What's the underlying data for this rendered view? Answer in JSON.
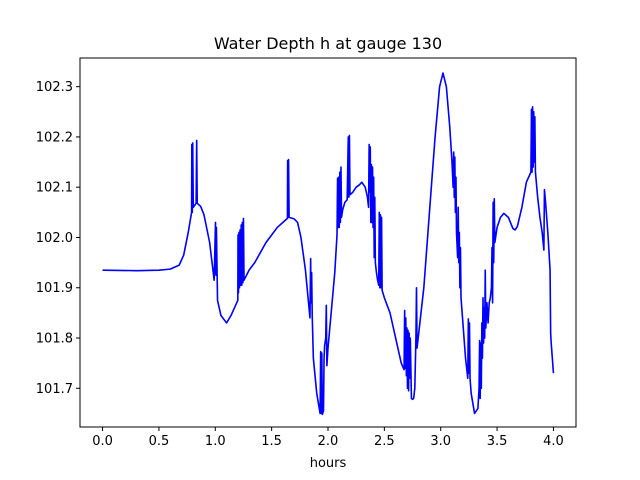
{
  "chart_data": {
    "type": "line",
    "title": "Water Depth h at gauge 130",
    "xlabel": "hours",
    "ylabel": "",
    "xlim": [
      -0.2,
      4.2
    ],
    "ylim": [
      101.623,
      102.357
    ],
    "xticks": [
      0.0,
      0.5,
      1.0,
      1.5,
      2.0,
      2.5,
      3.0,
      3.5,
      4.0
    ],
    "xtick_labels": [
      "0.0",
      "0.5",
      "1.0",
      "1.5",
      "2.0",
      "2.5",
      "3.0",
      "3.5",
      "4.0"
    ],
    "yticks": [
      101.7,
      101.8,
      101.9,
      102.0,
      102.1,
      102.2,
      102.3
    ],
    "ytick_labels": [
      "101.7",
      "101.8",
      "101.9",
      "102.0",
      "102.1",
      "102.2",
      "102.3"
    ],
    "grid": false,
    "series": [
      {
        "color": "#0000ff",
        "points": [
          [
            0.0,
            101.935
          ],
          [
            0.3,
            101.934
          ],
          [
            0.5,
            101.935
          ],
          [
            0.6,
            101.937
          ],
          [
            0.68,
            101.945
          ],
          [
            0.72,
            101.965
          ],
          [
            0.76,
            102.01
          ],
          [
            0.79,
            102.05
          ],
          [
            0.792,
            102.185
          ],
          [
            0.796,
            102.05
          ],
          [
            0.8,
            102.188
          ],
          [
            0.805,
            102.06
          ],
          [
            0.83,
            102.068
          ],
          [
            0.835,
            102.193
          ],
          [
            0.84,
            102.068
          ],
          [
            0.87,
            102.062
          ],
          [
            0.9,
            102.045
          ],
          [
            0.95,
            101.99
          ],
          [
            0.99,
            101.915
          ],
          [
            1.002,
            102.03
          ],
          [
            1.006,
            101.925
          ],
          [
            1.01,
            102.02
          ],
          [
            1.02,
            101.875
          ],
          [
            1.05,
            101.845
          ],
          [
            1.1,
            101.83
          ],
          [
            1.14,
            101.845
          ],
          [
            1.2,
            101.875
          ],
          [
            1.202,
            102.005
          ],
          [
            1.206,
            101.89
          ],
          [
            1.21,
            102.01
          ],
          [
            1.215,
            101.9
          ],
          [
            1.22,
            102.015
          ],
          [
            1.225,
            101.905
          ],
          [
            1.23,
            102.025
          ],
          [
            1.235,
            101.905
          ],
          [
            1.24,
            102.03
          ],
          [
            1.245,
            101.91
          ],
          [
            1.25,
            102.038
          ],
          [
            1.255,
            101.915
          ],
          [
            1.3,
            101.935
          ],
          [
            1.35,
            101.95
          ],
          [
            1.4,
            101.97
          ],
          [
            1.45,
            101.99
          ],
          [
            1.5,
            102.005
          ],
          [
            1.55,
            102.02
          ],
          [
            1.6,
            102.03
          ],
          [
            1.64,
            102.038
          ],
          [
            1.642,
            102.153
          ],
          [
            1.646,
            102.04
          ],
          [
            1.65,
            102.155
          ],
          [
            1.655,
            102.04
          ],
          [
            1.7,
            102.037
          ],
          [
            1.73,
            102.03
          ],
          [
            1.76,
            102.0
          ],
          [
            1.8,
            101.935
          ],
          [
            1.84,
            101.84
          ],
          [
            1.846,
            101.958
          ],
          [
            1.85,
            101.87
          ],
          [
            1.855,
            101.93
          ],
          [
            1.86,
            101.845
          ],
          [
            1.87,
            101.76
          ],
          [
            1.9,
            101.69
          ],
          [
            1.93,
            101.65
          ],
          [
            1.935,
            101.773
          ],
          [
            1.94,
            101.65
          ],
          [
            1.945,
            101.77
          ],
          [
            1.95,
            101.648
          ],
          [
            1.96,
            101.655
          ],
          [
            1.965,
            101.76
          ],
          [
            1.97,
            101.785
          ],
          [
            1.98,
            101.8
          ],
          [
            1.985,
            101.865
          ],
          [
            1.99,
            101.745
          ],
          [
            2.0,
            101.78
          ],
          [
            2.04,
            101.88
          ],
          [
            2.06,
            101.93
          ],
          [
            2.08,
            102.005
          ],
          [
            2.085,
            102.118
          ],
          [
            2.09,
            102.02
          ],
          [
            2.095,
            102.12
          ],
          [
            2.1,
            102.02
          ],
          [
            2.105,
            102.13
          ],
          [
            2.11,
            102.03
          ],
          [
            2.115,
            102.14
          ],
          [
            2.12,
            102.04
          ],
          [
            2.13,
            102.055
          ],
          [
            2.15,
            102.07
          ],
          [
            2.17,
            102.075
          ],
          [
            2.18,
            102.2
          ],
          [
            2.185,
            102.08
          ],
          [
            2.19,
            102.203
          ],
          [
            2.195,
            102.085
          ],
          [
            2.22,
            102.09
          ],
          [
            2.25,
            102.1
          ],
          [
            2.28,
            102.105
          ],
          [
            2.3,
            102.11
          ],
          [
            2.33,
            102.1
          ],
          [
            2.35,
            102.08
          ],
          [
            2.36,
            102.06
          ],
          [
            2.365,
            102.185
          ],
          [
            2.37,
            102.09
          ],
          [
            2.375,
            102.18
          ],
          [
            2.38,
            102.03
          ],
          [
            2.385,
            102.145
          ],
          [
            2.39,
            102.03
          ],
          [
            2.395,
            102.14
          ],
          [
            2.4,
            102.02
          ],
          [
            2.405,
            102.12
          ],
          [
            2.41,
            101.96
          ],
          [
            2.415,
            102.08
          ],
          [
            2.42,
            101.95
          ],
          [
            2.43,
            101.93
          ],
          [
            2.44,
            101.915
          ],
          [
            2.45,
            101.905
          ],
          [
            2.455,
            102.05
          ],
          [
            2.46,
            101.9
          ],
          [
            2.465,
            102.045
          ],
          [
            2.47,
            101.9
          ],
          [
            2.475,
            102.04
          ],
          [
            2.48,
            101.895
          ],
          [
            2.5,
            101.88
          ],
          [
            2.55,
            101.85
          ],
          [
            2.6,
            101.8
          ],
          [
            2.65,
            101.75
          ],
          [
            2.675,
            101.737
          ],
          [
            2.68,
            101.855
          ],
          [
            2.685,
            101.74
          ],
          [
            2.69,
            101.84
          ],
          [
            2.695,
            101.725
          ],
          [
            2.7,
            101.82
          ],
          [
            2.705,
            101.7
          ],
          [
            2.71,
            101.815
          ],
          [
            2.715,
            101.695
          ],
          [
            2.72,
            101.81
          ],
          [
            2.725,
            101.72
          ],
          [
            2.73,
            101.8
          ],
          [
            2.74,
            101.68
          ],
          [
            2.75,
            101.678
          ],
          [
            2.76,
            101.68
          ],
          [
            2.77,
            101.7
          ],
          [
            2.78,
            101.8
          ],
          [
            2.785,
            101.9
          ],
          [
            2.79,
            101.78
          ],
          [
            2.8,
            101.8
          ],
          [
            2.85,
            101.9
          ],
          [
            2.9,
            102.05
          ],
          [
            2.95,
            102.2
          ],
          [
            2.99,
            102.3
          ],
          [
            3.02,
            102.327
          ],
          [
            3.05,
            102.3
          ],
          [
            3.08,
            102.22
          ],
          [
            3.1,
            102.15
          ],
          [
            3.11,
            102.1
          ],
          [
            3.115,
            102.17
          ],
          [
            3.12,
            102.08
          ],
          [
            3.125,
            102.16
          ],
          [
            3.13,
            102.05
          ],
          [
            3.135,
            102.12
          ],
          [
            3.14,
            102.01
          ],
          [
            3.15,
            101.96
          ],
          [
            3.155,
            102.06
          ],
          [
            3.16,
            101.95
          ],
          [
            3.165,
            102.01
          ],
          [
            3.17,
            101.9
          ],
          [
            3.175,
            101.98
          ],
          [
            3.18,
            101.88
          ],
          [
            3.2,
            101.82
          ],
          [
            3.22,
            101.76
          ],
          [
            3.24,
            101.72
          ],
          [
            3.245,
            101.838
          ],
          [
            3.25,
            101.73
          ],
          [
            3.255,
            101.83
          ],
          [
            3.26,
            101.72
          ],
          [
            3.27,
            101.69
          ],
          [
            3.3,
            101.65
          ],
          [
            3.33,
            101.66
          ],
          [
            3.34,
            101.7
          ],
          [
            3.345,
            101.795
          ],
          [
            3.35,
            101.68
          ],
          [
            3.355,
            101.79
          ],
          [
            3.36,
            101.7
          ],
          [
            3.365,
            101.83
          ],
          [
            3.37,
            101.76
          ],
          [
            3.375,
            101.88
          ],
          [
            3.38,
            101.79
          ],
          [
            3.385,
            101.86
          ],
          [
            3.39,
            101.8
          ],
          [
            3.395,
            101.935
          ],
          [
            3.4,
            101.82
          ],
          [
            3.41,
            101.87
          ],
          [
            3.42,
            101.83
          ],
          [
            3.43,
            101.87
          ],
          [
            3.44,
            101.88
          ],
          [
            3.45,
            101.9
          ],
          [
            3.455,
            101.98
          ],
          [
            3.46,
            101.87
          ],
          [
            3.465,
            102.07
          ],
          [
            3.47,
            101.95
          ],
          [
            3.475,
            102.077
          ],
          [
            3.48,
            101.99
          ],
          [
            3.5,
            102.02
          ],
          [
            3.53,
            102.04
          ],
          [
            3.56,
            102.048
          ],
          [
            3.6,
            102.04
          ],
          [
            3.64,
            102.018
          ],
          [
            3.66,
            102.015
          ],
          [
            3.68,
            102.022
          ],
          [
            3.72,
            102.06
          ],
          [
            3.76,
            102.11
          ],
          [
            3.8,
            102.13
          ],
          [
            3.805,
            102.255
          ],
          [
            3.81,
            102.13
          ],
          [
            3.815,
            102.26
          ],
          [
            3.82,
            102.14
          ],
          [
            3.825,
            102.25
          ],
          [
            3.83,
            102.15
          ],
          [
            3.835,
            102.24
          ],
          [
            3.84,
            102.13
          ],
          [
            3.86,
            102.08
          ],
          [
            3.88,
            102.04
          ],
          [
            3.9,
            102.01
          ],
          [
            3.915,
            101.975
          ],
          [
            3.92,
            102.095
          ],
          [
            3.93,
            102.07
          ],
          [
            3.95,
            102.01
          ],
          [
            3.97,
            101.935
          ],
          [
            3.975,
            101.81
          ],
          [
            3.98,
            101.79
          ],
          [
            3.99,
            101.76
          ],
          [
            4.0,
            101.73
          ]
        ]
      }
    ]
  }
}
